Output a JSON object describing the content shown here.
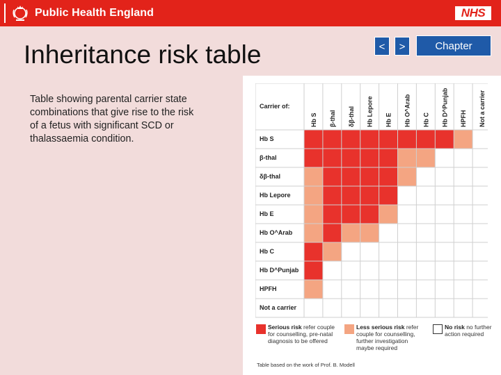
{
  "header": {
    "org_name": "Public Health England",
    "nhs_logo": "NHS",
    "brand_color": "#e2231a"
  },
  "slide": {
    "title": "Inheritance risk table",
    "description": "Table showing parental carrier state combinations that give rise to the risk of a fetus with significant SCD or thalassaemia condition."
  },
  "nav": {
    "prev_label": "<",
    "next_label": ">",
    "chapter_label": "Chapter",
    "button_color": "#1f5aa8"
  },
  "risk_table": {
    "corner_label": "Carrier of:",
    "columns": [
      "Hb S",
      "β-thal",
      "δβ-thal",
      "Hb Lepore",
      "Hb E",
      "Hb O^Arab",
      "Hb C",
      "Hb D^Punjab",
      "HPFH",
      "Not a carrier"
    ],
    "rows": [
      "Hb S",
      "β-thal",
      "δβ-thal",
      "Hb Lepore",
      "Hb E",
      "Hb O^Arab",
      "Hb C",
      "Hb D^Punjab",
      "HPFH",
      "Not a carrier"
    ],
    "cells": [
      [
        "S",
        "S",
        "S",
        "S",
        "S",
        "S",
        "S",
        "S",
        "L",
        "N"
      ],
      [
        "S",
        "S",
        "S",
        "S",
        "S",
        "L",
        "L",
        "N",
        "N",
        "N"
      ],
      [
        "L",
        "S",
        "S",
        "S",
        "S",
        "L",
        "N",
        "N",
        "N",
        "N"
      ],
      [
        "L",
        "S",
        "S",
        "S",
        "S",
        "N",
        "N",
        "N",
        "N",
        "N"
      ],
      [
        "L",
        "S",
        "S",
        "S",
        "L",
        "N",
        "N",
        "N",
        "N",
        "N"
      ],
      [
        "L",
        "S",
        "L",
        "L",
        "N",
        "N",
        "N",
        "N",
        "N",
        "N"
      ],
      [
        "S",
        "L",
        "N",
        "N",
        "N",
        "N",
        "N",
        "N",
        "N",
        "N"
      ],
      [
        "S",
        "N",
        "N",
        "N",
        "N",
        "N",
        "N",
        "N",
        "N",
        "N"
      ],
      [
        "L",
        "N",
        "N",
        "N",
        "N",
        "N",
        "N",
        "N",
        "N",
        "N"
      ],
      [
        "N",
        "N",
        "N",
        "N",
        "N",
        "N",
        "N",
        "N",
        "N",
        "N"
      ]
    ],
    "colors": {
      "S": "#e8322c",
      "L": "#f4a582",
      "N": "#ffffff",
      "grid": "#cfcfcf"
    }
  },
  "legend": {
    "serious": {
      "bold": "Serious risk",
      "rest": " refer couple for counselling, pre-natal diagnosis to be offered"
    },
    "less_serious": {
      "bold": "Less serious risk",
      "rest": " refer couple for counselling, further investigation maybe required"
    },
    "no_risk": {
      "bold": "No risk",
      "rest": " no further action required"
    }
  },
  "footnote": "Table based on the work of Prof. B. Modell"
}
